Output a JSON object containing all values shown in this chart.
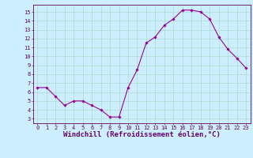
{
  "x": [
    0,
    1,
    2,
    3,
    4,
    5,
    6,
    7,
    8,
    9,
    10,
    11,
    12,
    13,
    14,
    15,
    16,
    17,
    18,
    19,
    20,
    21,
    22,
    23
  ],
  "y": [
    6.5,
    6.5,
    5.5,
    4.5,
    5.0,
    5.0,
    4.5,
    4.0,
    3.2,
    3.2,
    6.5,
    8.5,
    11.5,
    12.2,
    13.5,
    14.2,
    15.2,
    15.2,
    15.0,
    14.2,
    12.2,
    10.8,
    9.8,
    8.7
  ],
  "xlim": [
    -0.5,
    23.5
  ],
  "ylim": [
    2.5,
    15.8
  ],
  "yticks": [
    3,
    4,
    5,
    6,
    7,
    8,
    9,
    10,
    11,
    12,
    13,
    14,
    15
  ],
  "xticks": [
    0,
    1,
    2,
    3,
    4,
    5,
    6,
    7,
    8,
    9,
    10,
    11,
    12,
    13,
    14,
    15,
    16,
    17,
    18,
    19,
    20,
    21,
    22,
    23
  ],
  "xlabel": "Windchill (Refroidissement éolien,°C)",
  "line_color": "#990099",
  "marker_color": "#990099",
  "bg_color": "#cceeff",
  "grid_color": "#aaddcc",
  "axis_color": "#660066",
  "label_color": "#660066",
  "tick_fontsize": 5.0,
  "xlabel_fontsize": 6.5
}
